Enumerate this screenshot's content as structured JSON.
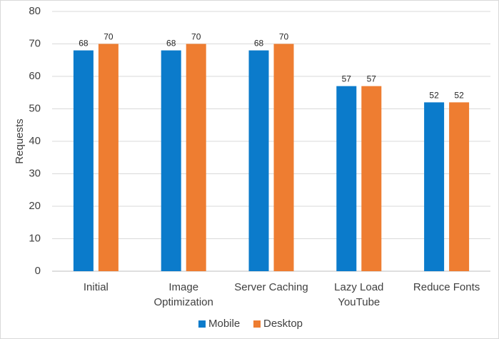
{
  "chart_data": {
    "type": "bar",
    "title": "",
    "xlabel": "",
    "ylabel": "Requests",
    "ylim": [
      0,
      80
    ],
    "yticks": [
      0,
      10,
      20,
      30,
      40,
      50,
      60,
      70,
      80
    ],
    "grid": true,
    "legend_position": "bottom",
    "categories": [
      [
        "Initial"
      ],
      [
        "Image",
        "Optimization"
      ],
      [
        "Server Caching"
      ],
      [
        "Lazy Load",
        "YouTube"
      ],
      [
        "Reduce Fonts"
      ]
    ],
    "series": [
      {
        "name": "Mobile",
        "color": "#0b7bcb",
        "values": [
          68,
          68,
          68,
          57,
          52
        ]
      },
      {
        "name": "Desktop",
        "color": "#ee7d31",
        "values": [
          70,
          70,
          70,
          57,
          52
        ]
      }
    ]
  }
}
